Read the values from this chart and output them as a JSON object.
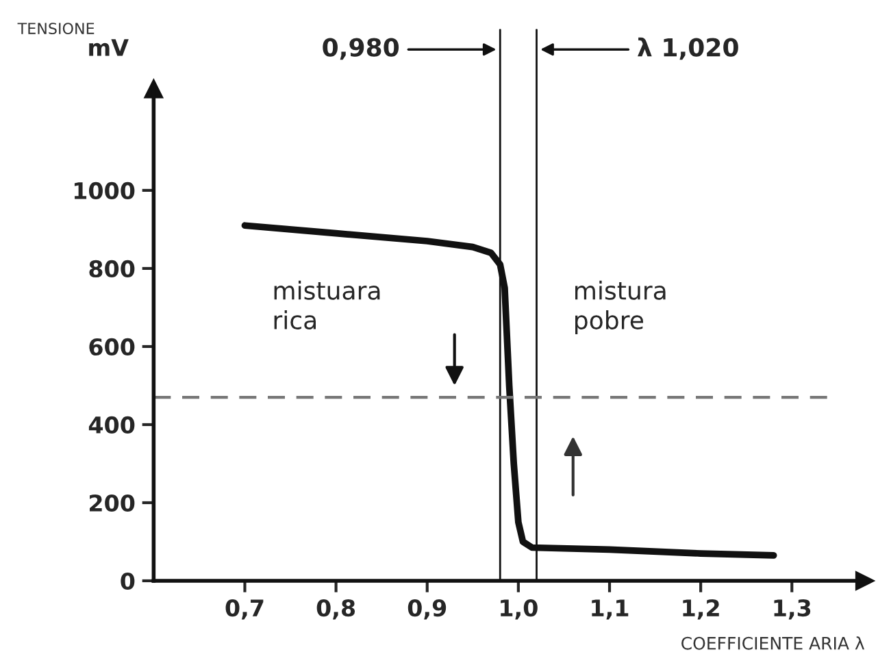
{
  "chart_data": {
    "type": "line",
    "ylabel": "TENSIONE",
    "xlabel": "COEFFICIENTE ARIA λ",
    "x": [
      0.7,
      0.8,
      0.9,
      0.95,
      0.97,
      0.98,
      0.985,
      0.99,
      0.995,
      1.0,
      1.005,
      1.015,
      1.1,
      1.2,
      1.28
    ],
    "series": [
      {
        "color": "#111111",
        "values": [
          910,
          890,
          870,
          855,
          840,
          810,
          750,
          500,
          300,
          150,
          100,
          85,
          80,
          70,
          65
        ]
      }
    ],
    "xlim": [
      0.6,
      1.38
    ],
    "ylim": [
      0,
      1260
    ],
    "xticks": [
      {
        "value": 0.7,
        "label": "0,7"
      },
      {
        "value": 0.8,
        "label": "0,8"
      },
      {
        "value": 0.9,
        "label": "0,9"
      },
      {
        "value": 1.0,
        "label": "1,0"
      },
      {
        "value": 1.1,
        "label": "1,1"
      },
      {
        "value": 1.2,
        "label": "1,2"
      },
      {
        "value": 1.3,
        "label": "1,3"
      }
    ],
    "yticks": [
      0,
      200,
      400,
      600,
      800,
      1000
    ],
    "ref_lines": [
      {
        "axis": "x",
        "value": 0.98,
        "label": "0,980",
        "color": "#111111",
        "line_style": "solid"
      },
      {
        "axis": "x",
        "value": 1.02,
        "label": "λ 1,020",
        "color": "#111111",
        "line_style": "solid"
      },
      {
        "axis": "y",
        "value": 470,
        "color": "#777777",
        "line_style": "dashed"
      }
    ],
    "annotations": [
      "mV",
      "mistuara\nrica",
      "mistura\npobre"
    ],
    "grid": false,
    "legend": false,
    "marker": "none",
    "line_style": "solid"
  }
}
